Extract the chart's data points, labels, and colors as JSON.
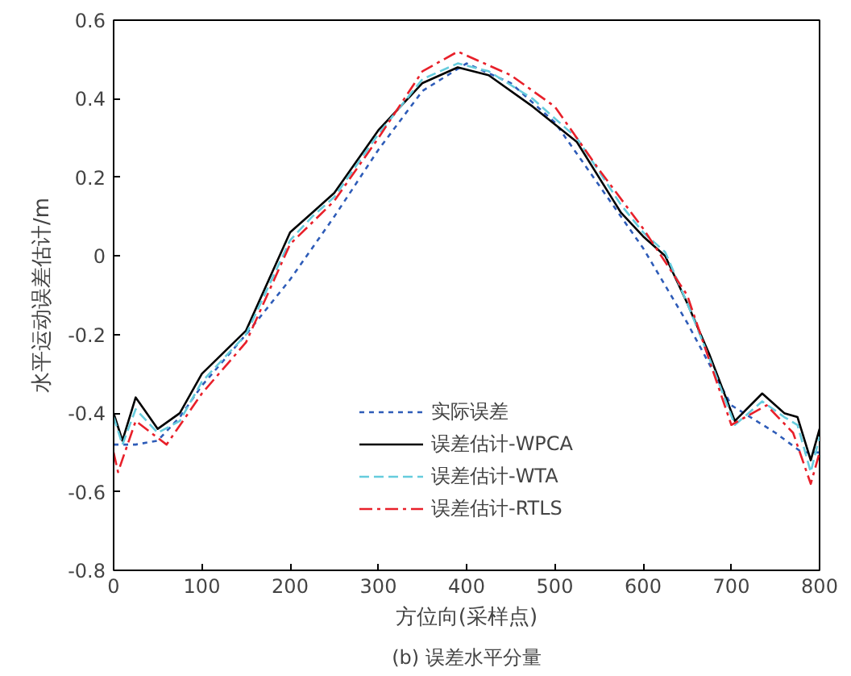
{
  "chart_data": {
    "type": "line",
    "xlabel": "方位向(采样点)",
    "ylabel": "水平运动误差估计/m",
    "annotations": [
      "(b) 误差水平分量"
    ],
    "xlim": [
      0,
      800
    ],
    "xticks": [
      0,
      100,
      200,
      300,
      400,
      500,
      600,
      700,
      800
    ],
    "ylim": [
      -0.8,
      0.6
    ],
    "yticks": [
      -0.8,
      -0.6,
      -0.4,
      -0.2,
      0,
      0.2,
      0.4,
      0.6
    ],
    "grid": false,
    "legend": "bottom",
    "series": [
      {
        "name": "实际误差",
        "color": "#2e5cb8",
        "line_style": "dotted",
        "x": [
          0,
          25,
          50,
          75,
          100,
          150,
          200,
          250,
          300,
          350,
          400,
          450,
          500,
          550,
          600,
          650,
          700,
          750,
          780,
          800
        ],
        "values": [
          -0.48,
          -0.48,
          -0.47,
          -0.41,
          -0.33,
          -0.2,
          -0.06,
          0.1,
          0.27,
          0.42,
          0.49,
          0.44,
          0.34,
          0.18,
          0.02,
          -0.17,
          -0.38,
          -0.45,
          -0.5,
          -0.5
        ]
      },
      {
        "name": "误差估计-WPCA",
        "color": "#000000",
        "line_style": "solid",
        "x": [
          0,
          10,
          25,
          50,
          75,
          100,
          150,
          200,
          225,
          250,
          300,
          350,
          390,
          425,
          475,
          525,
          575,
          600,
          625,
          650,
          675,
          704,
          735,
          760,
          775,
          790,
          800
        ],
        "values": [
          -0.4,
          -0.47,
          -0.36,
          -0.44,
          -0.4,
          -0.3,
          -0.19,
          0.06,
          0.11,
          0.16,
          0.32,
          0.44,
          0.48,
          0.46,
          0.38,
          0.29,
          0.11,
          0.05,
          0.0,
          -0.12,
          -0.25,
          -0.42,
          -0.35,
          -0.4,
          -0.41,
          -0.52,
          -0.44
        ]
      },
      {
        "name": "误差估计-WTA",
        "color": "#66ccdd",
        "line_style": "dashed",
        "x": [
          0,
          10,
          25,
          50,
          75,
          100,
          150,
          200,
          225,
          250,
          300,
          350,
          390,
          425,
          475,
          525,
          575,
          600,
          625,
          650,
          675,
          704,
          735,
          760,
          775,
          790,
          800
        ],
        "values": [
          -0.41,
          -0.48,
          -0.39,
          -0.45,
          -0.42,
          -0.32,
          -0.2,
          0.04,
          0.1,
          0.15,
          0.31,
          0.45,
          0.49,
          0.47,
          0.4,
          0.3,
          0.13,
          0.06,
          0.01,
          -0.12,
          -0.26,
          -0.43,
          -0.37,
          -0.41,
          -0.43,
          -0.55,
          -0.46
        ]
      },
      {
        "name": "误差估计-RTLS",
        "color": "#e8202a",
        "line_style": "dashdot",
        "x": [
          0,
          5,
          25,
          60,
          100,
          150,
          200,
          250,
          300,
          350,
          390,
          450,
          500,
          550,
          600,
          650,
          700,
          740,
          770,
          790,
          800
        ],
        "values": [
          -0.5,
          -0.55,
          -0.42,
          -0.48,
          -0.35,
          -0.22,
          0.03,
          0.14,
          0.3,
          0.47,
          0.52,
          0.46,
          0.38,
          0.22,
          0.07,
          -0.1,
          -0.43,
          -0.38,
          -0.45,
          -0.58,
          -0.5
        ]
      }
    ]
  }
}
